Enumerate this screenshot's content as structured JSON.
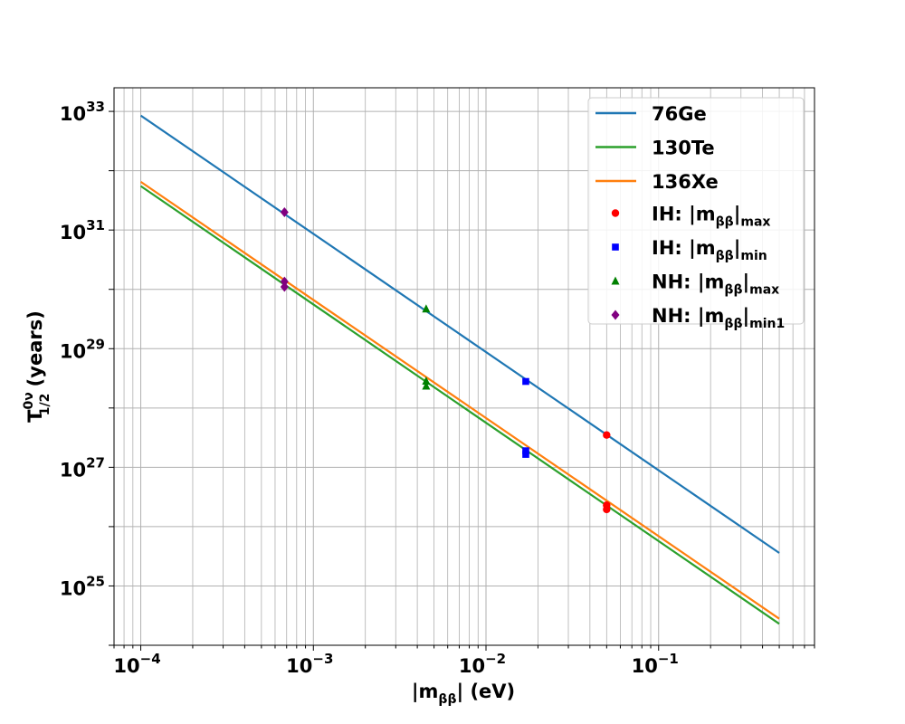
{
  "chart_data": {
    "type": "line",
    "xlabel": {
      "pre": "|m",
      "sub": "ββ",
      "post": "| (eV)"
    },
    "ylabel": {
      "pre": "T",
      "sup": "0ν",
      "sub": "1/2",
      "post": " (years)"
    },
    "x_scale": "log",
    "y_scale": "log",
    "xlim": [
      7e-05,
      0.8
    ],
    "ylim": [
      1e+24,
      2.5e+33
    ],
    "grid": true,
    "legend_position": "top-right",
    "x_ticks": [
      {
        "value": 0.0001,
        "base": "10",
        "exp": "−4"
      },
      {
        "value": 0.001,
        "base": "10",
        "exp": "−3"
      },
      {
        "value": 0.01,
        "base": "10",
        "exp": "−2"
      },
      {
        "value": 0.1,
        "base": "10",
        "exp": "−1"
      }
    ],
    "y_ticks": [
      {
        "value": 1e+25,
        "base": "10",
        "exp": "25"
      },
      {
        "value": 1e+27,
        "base": "10",
        "exp": "27"
      },
      {
        "value": 1e+29,
        "base": "10",
        "exp": "29"
      },
      {
        "value": 1e+31,
        "base": "10",
        "exp": "31"
      },
      {
        "value": 1e+33,
        "base": "10",
        "exp": "33"
      }
    ],
    "series": [
      {
        "name": "76Ge",
        "color": "#1f77b4",
        "x": [
          0.0001,
          0.5
        ],
        "y": [
          8.5e+32,
          3.6e+25
        ]
      },
      {
        "name": "130Te",
        "color": "#2ca02c",
        "x": [
          0.0001,
          0.5
        ],
        "y": [
          5.5e+31,
          2.3e+24
        ]
      },
      {
        "name": "136Xe",
        "color": "#ff7f0e",
        "x": [
          0.0001,
          0.5
        ],
        "y": [
          6.5e+31,
          2.8e+24
        ]
      }
    ],
    "markers": [
      {
        "label": {
          "pre": "IH: |m",
          "sub": "ββ",
          "post": "|",
          "sub2": "max"
        },
        "color": "#ff0000",
        "shape": "circle",
        "x": [
          0.05,
          0.05,
          0.05
        ],
        "y": [
          3.5e+27,
          2.3e+26,
          1.95e+26
        ]
      },
      {
        "label": {
          "pre": "IH: |m",
          "sub": "ββ",
          "post": "|",
          "sub2": "min"
        },
        "color": "#0000ff",
        "shape": "square",
        "x": [
          0.017,
          0.017,
          0.017
        ],
        "y": [
          2.8e+28,
          1.9e+27,
          1.65e+27
        ]
      },
      {
        "label": {
          "pre": "NH: |m",
          "sub": "ββ",
          "post": "|",
          "sub2": "max"
        },
        "color": "#008000",
        "shape": "triangle",
        "x": [
          0.0045,
          0.0045,
          0.0045
        ],
        "y": [
          4.7e+29,
          2.85e+28,
          2.35e+28
        ]
      },
      {
        "label": {
          "pre": "NH: |m",
          "sub": "ββ",
          "post": "|",
          "sub2": "min1"
        },
        "color": "#800080",
        "shape": "diamond",
        "x": [
          0.00068,
          0.00068,
          0.00068
        ],
        "y": [
          2e+31,
          1.35e+30,
          1.1e+30
        ]
      }
    ]
  }
}
